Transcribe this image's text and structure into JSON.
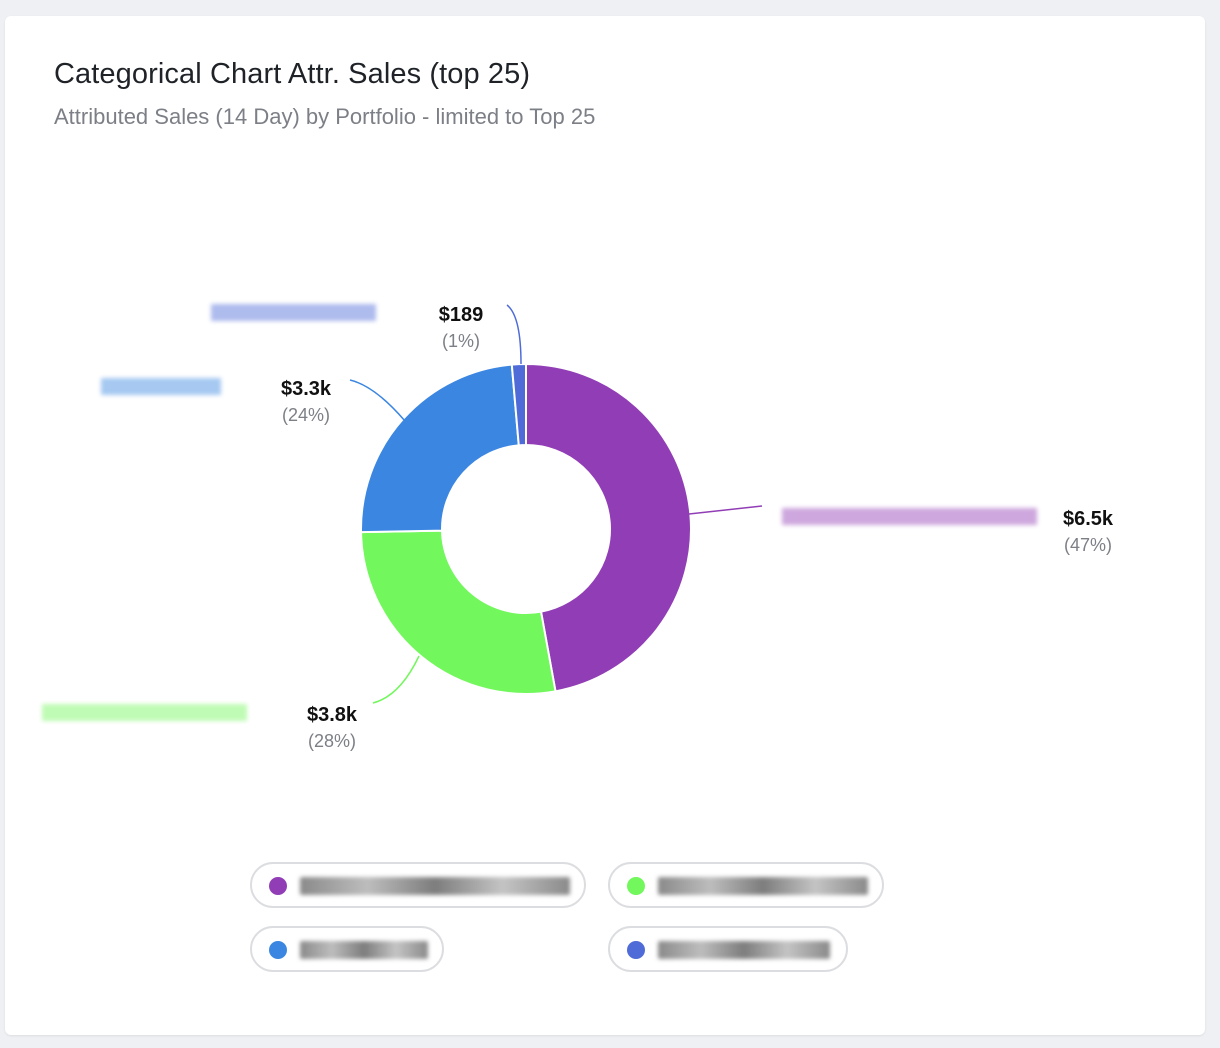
{
  "card": {
    "title": "Categorical Chart Attr. Sales (top 25)",
    "subtitle": "Attributed Sales (14 Day) by Portfolio - limited to Top 25"
  },
  "chart_data": {
    "type": "pie",
    "donut": true,
    "title": "Categorical Chart Attr. Sales (top 25)",
    "subtitle": "Attributed Sales (14 Day) by Portfolio - limited to Top 25",
    "slices": [
      {
        "value_label": "$6.5k",
        "pct_label": "(47%)",
        "value": 6500,
        "percent": 47,
        "color": "#913db5"
      },
      {
        "value_label": "$3.8k",
        "pct_label": "(28%)",
        "value": 3800,
        "percent": 28,
        "color": "#72f75c"
      },
      {
        "value_label": "$3.3k",
        "pct_label": "(24%)",
        "value": 3300,
        "percent": 24,
        "color": "#3b86e1"
      },
      {
        "value_label": "$189",
        "pct_label": "(1%)",
        "value": 189,
        "percent": 1,
        "color": "#4e6bd8"
      }
    ],
    "category_names_redacted": true,
    "legend": "bottom"
  },
  "legend": [
    {
      "color": "#913db5",
      "icon": "circle-dot"
    },
    {
      "color": "#72f75c",
      "icon": "circle-dot"
    },
    {
      "color": "#3b86e1",
      "icon": "circle-dot"
    },
    {
      "color": "#4e6bd8",
      "icon": "circle-dot"
    }
  ]
}
